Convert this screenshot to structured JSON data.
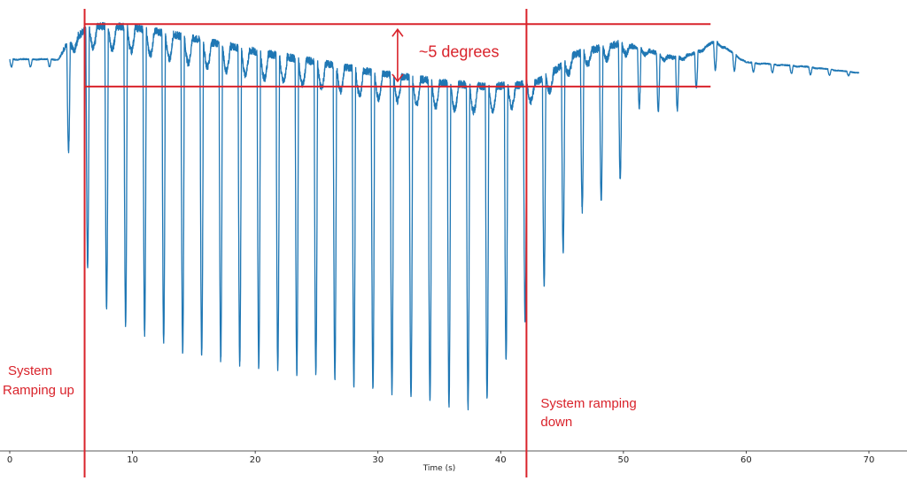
{
  "chart_data": {
    "type": "scatter",
    "title": "",
    "xlabel": "Time (s)",
    "ylabel": "",
    "xlim": [
      0,
      70
    ],
    "ylim": [
      -25.5,
      3.5
    ],
    "x_ticks": [
      "0",
      "10",
      "20",
      "30",
      "40",
      "50",
      "60",
      "70"
    ],
    "y_ticks": [],
    "grid": false,
    "legend": "none",
    "series": [
      {
        "color": "#1f77b4",
        "baseline": 0,
        "oscillation_period_s": 1.55,
        "envelope_points": [
          {
            "x": 0,
            "min": -0.3,
            "max": 0.2
          },
          {
            "x": 4,
            "min": -0.3,
            "max": 0.2
          },
          {
            "x": 4.5,
            "min": -5,
            "max": 1.0
          },
          {
            "x": 6,
            "min": -9,
            "max": 2.0
          },
          {
            "x": 6.5,
            "min": -15.5,
            "max": 2.4
          },
          {
            "x": 10,
            "min": -17.5,
            "max": 2.3
          },
          {
            "x": 14,
            "min": -19,
            "max": 1.7
          },
          {
            "x": 20,
            "min": -20,
            "max": 0.7
          },
          {
            "x": 25,
            "min": -20.5,
            "max": 0.0
          },
          {
            "x": 30,
            "min": -21.5,
            "max": -0.7
          },
          {
            "x": 35,
            "min": -22.5,
            "max": -1.3
          },
          {
            "x": 38.5,
            "min": -22.8,
            "max": -1.6
          },
          {
            "x": 41.5,
            "min": -18,
            "max": -1.5
          },
          {
            "x": 43,
            "min": -15,
            "max": -1.3
          },
          {
            "x": 44.5,
            "min": -14,
            "max": -0.5
          },
          {
            "x": 46,
            "min": -10,
            "max": 0.5
          },
          {
            "x": 49.5,
            "min": -8.5,
            "max": 1.2
          },
          {
            "x": 51,
            "min": -3,
            "max": 1.0
          },
          {
            "x": 54,
            "min": -3.5,
            "max": 0.3
          },
          {
            "x": 55.5,
            "min": -2,
            "max": 0.5
          },
          {
            "x": 57.5,
            "min": -0.5,
            "max": 1.4
          },
          {
            "x": 60,
            "min": -0.6,
            "max": 0.0
          },
          {
            "x": 65,
            "min": -0.8,
            "max": -0.3
          },
          {
            "x": 69.2,
            "min": -0.9,
            "max": -0.7
          }
        ]
      }
    ],
    "annotations": {
      "amplitude_label": "~5 degrees",
      "ramp_up_line1": "System",
      "ramp_up_line2": "Ramping up",
      "ramp_down_line1": "System ramping",
      "ramp_down_line2": "down",
      "ramp_up_time": 6.1,
      "ramp_down_time": 42.1,
      "upper_level": 2.5,
      "lower_level": -1.6,
      "line_end_time": 57.1,
      "arrow_time": 31.6,
      "color": "#d9232b"
    }
  }
}
